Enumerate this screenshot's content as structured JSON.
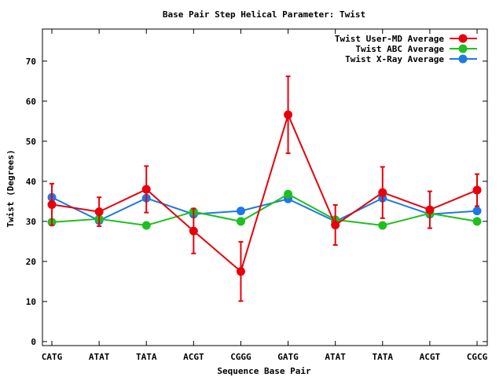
{
  "chart_data": {
    "type": "line",
    "title": "Base Pair Step Helical Parameter: Twist",
    "xlabel": "Sequence Base Pair",
    "ylabel": "Twist (Degrees)",
    "ylim": [
      -1,
      78
    ],
    "yticks": [
      0,
      10,
      20,
      30,
      40,
      50,
      60,
      70
    ],
    "grid": false,
    "legend_position": "top-right",
    "categories": [
      "CATG",
      "ATAT",
      "TATA",
      "ACGT",
      "CGGG",
      "GATG",
      "ATAT",
      "TATA",
      "ACGT",
      "CGCG"
    ],
    "series": [
      {
        "name": "Twist User-MD Average",
        "color": "#e8000b",
        "values": [
          34.2,
          32.4,
          38.0,
          27.6,
          17.5,
          56.6,
          29.1,
          37.2,
          32.9,
          37.8
        ],
        "error": [
          5.2,
          3.6,
          5.8,
          5.6,
          7.4,
          9.6,
          5.0,
          6.4,
          4.6,
          4.0
        ]
      },
      {
        "name": "Twist ABC Average",
        "color": "#1fbf1f",
        "values": [
          29.8,
          30.6,
          29.0,
          32.4,
          30.0,
          36.8,
          30.4,
          29.0,
          32.0,
          30.0
        ]
      },
      {
        "name": "Twist X-Ray Average",
        "color": "#1e78e6",
        "values": [
          36.0,
          30.2,
          35.8,
          31.8,
          32.6,
          35.6,
          30.0,
          35.8,
          31.8,
          32.6
        ]
      }
    ]
  }
}
